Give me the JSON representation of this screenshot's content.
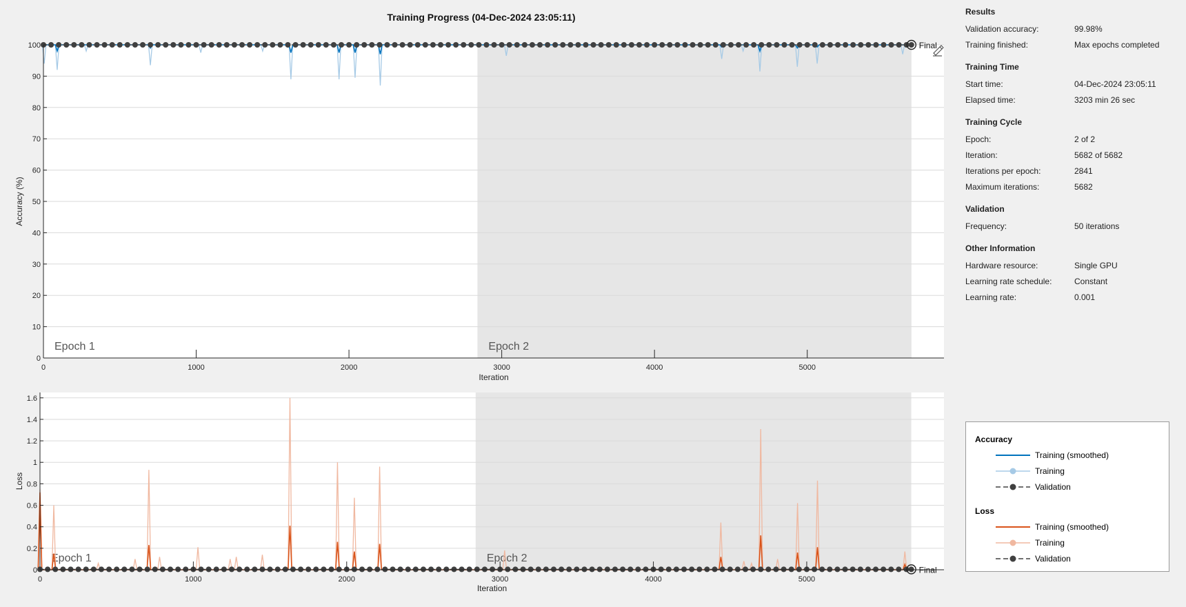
{
  "chart_data": [
    {
      "type": "line",
      "title": "Training Progress (04-Dec-2024 23:05:11)",
      "xlabel": "Iteration",
      "ylabel": "Accuracy (%)",
      "xlim": [
        0,
        5895
      ],
      "ylim": [
        0,
        100
      ],
      "xticks": [
        0,
        1000,
        2000,
        3000,
        4000,
        5000
      ],
      "yticks": [
        0,
        10,
        20,
        30,
        40,
        50,
        60,
        70,
        80,
        90,
        100
      ],
      "grid": true,
      "epochs": [
        {
          "label": "Epoch 1",
          "start": 0,
          "end": 2841,
          "shaded": false
        },
        {
          "label": "Epoch 2",
          "start": 2841,
          "end": 5682,
          "shaded": true
        }
      ],
      "final_label": "Final",
      "final_value": 99.98,
      "baseline": 100,
      "validation_frequency": 50,
      "series": [
        {
          "name": "Training (smoothed)",
          "color": "#0072bd",
          "dips": [
            [
              90,
              98
            ],
            [
              700,
              99
            ],
            [
              1620,
              97.5
            ],
            [
              1935,
              97.5
            ],
            [
              2040,
              97.5
            ],
            [
              2205,
              97
            ],
            [
              4440,
              99.3
            ],
            [
              4690,
              98
            ],
            [
              4935,
              99
            ],
            [
              5065,
              99.3
            ]
          ]
        },
        {
          "name": "Training",
          "color": "#a6cae6",
          "dips": [
            [
              5,
              94
            ],
            [
              90,
              92
            ],
            [
              280,
              98
            ],
            [
              700,
              93.5
            ],
            [
              1030,
              97.5
            ],
            [
              1435,
              98
            ],
            [
              1620,
              89
            ],
            [
              1935,
              89
            ],
            [
              2040,
              89.5
            ],
            [
              2205,
              87
            ],
            [
              3030,
              96.5
            ],
            [
              4440,
              95.5
            ],
            [
              4580,
              98
            ],
            [
              4690,
              91.5
            ],
            [
              4935,
              93
            ],
            [
              5065,
              94
            ],
            [
              5625,
              97
            ]
          ]
        },
        {
          "name": "Validation",
          "color": "#404040",
          "y_constant": 100
        }
      ]
    },
    {
      "type": "line",
      "xlabel": "Iteration",
      "ylabel": "Loss",
      "xlim": [
        0,
        5895
      ],
      "ylim": [
        0,
        1.65
      ],
      "xticks": [
        0,
        1000,
        2000,
        3000,
        4000,
        5000
      ],
      "yticks": [
        0,
        0.2,
        0.4,
        0.6,
        0.8,
        1,
        1.2,
        1.4,
        1.6
      ],
      "ytick_labels": [
        "0",
        "0.2",
        "0.4",
        "0.6",
        "0.8",
        "1",
        "1.2",
        "1.4",
        "1.6"
      ],
      "grid": true,
      "epochs": [
        {
          "label": "Epoch 1",
          "start": 0,
          "end": 2841,
          "shaded": false
        },
        {
          "label": "Epoch 2",
          "start": 2841,
          "end": 5682,
          "shaded": true
        }
      ],
      "final_label": "Final",
      "baseline": 0,
      "validation_frequency": 50,
      "series": [
        {
          "name": "Training (smoothed)",
          "color": "#d95319",
          "spikes": [
            [
              0,
              0.72
            ],
            [
              90,
              0.15
            ],
            [
              710,
              0.23
            ],
            [
              1630,
              0.41
            ],
            [
              1940,
              0.26
            ],
            [
              2050,
              0.17
            ],
            [
              2215,
              0.24
            ],
            [
              4440,
              0.12
            ],
            [
              4700,
              0.32
            ],
            [
              4940,
              0.16
            ],
            [
              5070,
              0.21
            ],
            [
              5640,
              0.05
            ]
          ]
        },
        {
          "name": "Training",
          "color": "#f0b8a0",
          "spikes": [
            [
              0,
              0.75
            ],
            [
              90,
              0.6
            ],
            [
              380,
              0.06
            ],
            [
              620,
              0.1
            ],
            [
              710,
              0.93
            ],
            [
              780,
              0.12
            ],
            [
              1030,
              0.21
            ],
            [
              1240,
              0.1
            ],
            [
              1280,
              0.12
            ],
            [
              1450,
              0.14
            ],
            [
              1630,
              1.6
            ],
            [
              1940,
              1.0
            ],
            [
              2050,
              0.67
            ],
            [
              2215,
              0.96
            ],
            [
              3030,
              0.18
            ],
            [
              4440,
              0.44
            ],
            [
              4590,
              0.08
            ],
            [
              4640,
              0.06
            ],
            [
              4700,
              1.31
            ],
            [
              4810,
              0.1
            ],
            [
              4940,
              0.62
            ],
            [
              5070,
              0.83
            ],
            [
              5640,
              0.17
            ]
          ]
        },
        {
          "name": "Validation",
          "color": "#404040",
          "y_constant": 0.004
        }
      ]
    }
  ],
  "panel": {
    "sections": [
      {
        "title": "Results",
        "rows": [
          {
            "k": "Validation accuracy:",
            "v": "99.98%"
          },
          {
            "k": "Training finished:",
            "v": "Max epochs completed"
          }
        ]
      },
      {
        "title": "Training Time",
        "rows": [
          {
            "k": "Start time:",
            "v": "04-Dec-2024 23:05:11"
          },
          {
            "k": "Elapsed time:",
            "v": "3203 min 26 sec"
          }
        ]
      },
      {
        "title": "Training Cycle",
        "rows": [
          {
            "k": "Epoch:",
            "v": "2 of 2"
          },
          {
            "k": "Iteration:",
            "v": "5682 of 5682"
          },
          {
            "k": "Iterations per epoch:",
            "v": "2841"
          },
          {
            "k": "Maximum iterations:",
            "v": "5682"
          }
        ]
      },
      {
        "title": "Validation",
        "rows": [
          {
            "k": "Frequency:",
            "v": "50 iterations"
          }
        ]
      },
      {
        "title": "Other Information",
        "rows": [
          {
            "k": "Hardware resource:",
            "v": "Single GPU"
          },
          {
            "k": "Learning rate schedule:",
            "v": "Constant"
          },
          {
            "k": "Learning rate:",
            "v": "0.001"
          }
        ]
      }
    ]
  },
  "legend": {
    "groups": [
      {
        "title": "Accuracy",
        "items": [
          {
            "label": "Training (smoothed)",
            "style": "line",
            "color": "#0072bd"
          },
          {
            "label": "Training",
            "style": "line-marker",
            "color": "#a6cae6"
          },
          {
            "label": "Validation",
            "style": "dash-marker",
            "color": "#404040"
          }
        ]
      },
      {
        "title": "Loss",
        "items": [
          {
            "label": "Training (smoothed)",
            "style": "line",
            "color": "#d95319"
          },
          {
            "label": "Training",
            "style": "line-marker",
            "color": "#f0b8a0"
          },
          {
            "label": "Validation",
            "style": "dash-marker",
            "color": "#404040"
          }
        ]
      }
    ]
  },
  "toolbar": {
    "icon": "plot-edit-icon"
  }
}
